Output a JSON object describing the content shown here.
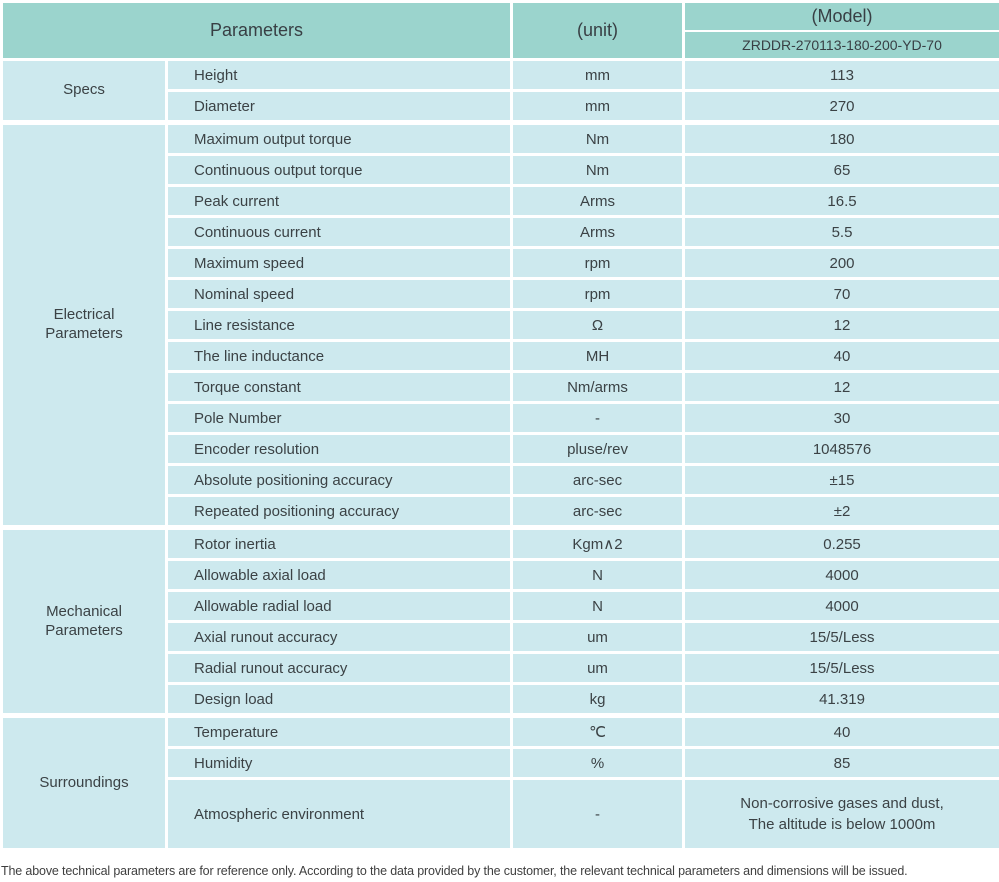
{
  "colors": {
    "header_bg": "#9bd4cd",
    "cell_bg": "#cde9ee",
    "border": "#ffffff",
    "text": "#3b4245"
  },
  "table": {
    "header": {
      "parameters_label": "Parameters",
      "unit_label": "(unit)",
      "model_label": "(Model)",
      "model_number": "ZRDDR-270113-180-200-YD-70"
    },
    "sections": [
      {
        "category": "Specs",
        "rows": [
          {
            "param": "Height",
            "unit": "mm",
            "value": "113"
          },
          {
            "param": "Diameter",
            "unit": "mm",
            "value": "270"
          }
        ]
      },
      {
        "category": "Electrical\nParameters",
        "rows": [
          {
            "param": "Maximum output torque",
            "unit": "Nm",
            "value": "180"
          },
          {
            "param": "Continuous output torque",
            "unit": "Nm",
            "value": "65"
          },
          {
            "param": "Peak current",
            "unit": "Arms",
            "value": "16.5"
          },
          {
            "param": "Continuous current",
            "unit": "Arms",
            "value": "5.5"
          },
          {
            "param": "Maximum speed",
            "unit": "rpm",
            "value": "200"
          },
          {
            "param": "Nominal speed",
            "unit": "rpm",
            "value": "70"
          },
          {
            "param": "Line resistance",
            "unit": "Ω",
            "value": "12"
          },
          {
            "param": "The line inductance",
            "unit": "MH",
            "value": "40"
          },
          {
            "param": "Torque constant",
            "unit": "Nm/arms",
            "value": "12"
          },
          {
            "param": "Pole Number",
            "unit": "-",
            "value": "30"
          },
          {
            "param": "Encoder resolution",
            "unit": "pluse/rev",
            "value": "1048576"
          },
          {
            "param": "Absolute positioning accuracy",
            "unit": "arc-sec",
            "value": "±15"
          },
          {
            "param": "Repeated positioning accuracy",
            "unit": "arc-sec",
            "value": "±2"
          }
        ]
      },
      {
        "category": "Mechanical\nParameters",
        "rows": [
          {
            "param": "Rotor inertia",
            "unit": "Kgm∧2",
            "value": "0.255"
          },
          {
            "param": "Allowable axial load",
            "unit": "N",
            "value": "4000"
          },
          {
            "param": "Allowable radial load",
            "unit": "N",
            "value": "4000"
          },
          {
            "param": "Axial runout accuracy",
            "unit": "um",
            "value": "15/5/Less"
          },
          {
            "param": "Radial runout accuracy",
            "unit": "um",
            "value": "15/5/Less"
          },
          {
            "param": "Design load",
            "unit": "kg",
            "value": "41.319"
          }
        ]
      },
      {
        "category": "Surroundings",
        "rows": [
          {
            "param": "Temperature",
            "unit": "℃",
            "value": "40"
          },
          {
            "param": "Humidity",
            "unit": "%",
            "value": "85"
          },
          {
            "param": "Atmospheric environment",
            "unit": "-",
            "value": "Non-corrosive gases and dust,\nThe altitude is below 1000m"
          }
        ]
      }
    ],
    "footnote": "The above technical parameters are for reference only. According to the data provided by the customer, the relevant technical parameters and dimensions will be issued."
  }
}
